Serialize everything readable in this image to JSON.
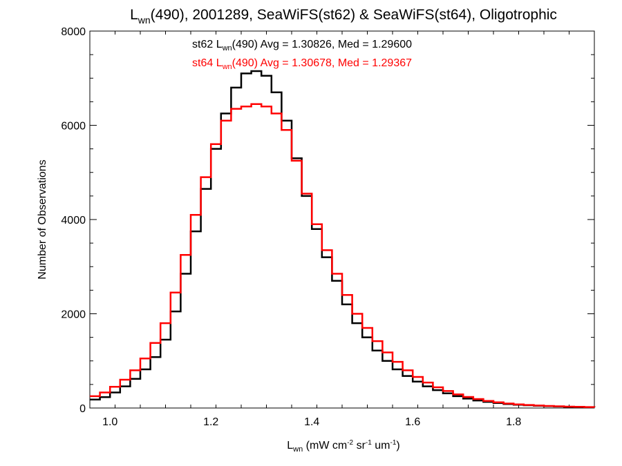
{
  "chart_data": {
    "type": "line",
    "title": {
      "prefix": "L",
      "sub": "wn",
      "rest": "(490), 2001289, SeaWiFS(st62) & SeaWiFS(st64), Oligotrophic"
    },
    "xlabel": {
      "prefix": "L",
      "sub": "wn",
      "a": " (mW cm",
      "s1": "-2",
      "b": " sr",
      "s2": "-1",
      "c": " um",
      "s3": "-1",
      "d": ")"
    },
    "ylabel": "Number of Observations",
    "xlim": [
      0.96,
      1.96
    ],
    "ylim": [
      0,
      8000
    ],
    "x_ticks": [
      1.0,
      1.2,
      1.4,
      1.6,
      1.8
    ],
    "x_tick_labels": [
      "1.0",
      "1.2",
      "1.4",
      "1.6",
      "1.8"
    ],
    "y_ticks": [
      0,
      2000,
      4000,
      6000,
      8000
    ],
    "y_tick_labels": [
      "0",
      "2000",
      "4000",
      "6000",
      "8000"
    ],
    "annotations": [
      {
        "pre": "st62 L",
        "sub": "wn",
        "post": "(490) Avg = 1.30826, Med = 1.29600",
        "color": "#000000"
      },
      {
        "pre": "st64 L",
        "sub": "wn",
        "post": "(490) Avg = 1.30678, Med = 1.29367",
        "color": "#ff0000"
      }
    ],
    "series": [
      {
        "color": "#000000",
        "x": [
          0.96,
          0.98,
          1.0,
          1.02,
          1.04,
          1.06,
          1.08,
          1.1,
          1.12,
          1.14,
          1.16,
          1.18,
          1.2,
          1.22,
          1.24,
          1.26,
          1.28,
          1.3,
          1.32,
          1.34,
          1.36,
          1.38,
          1.4,
          1.42,
          1.44,
          1.46,
          1.48,
          1.5,
          1.52,
          1.54,
          1.56,
          1.58,
          1.6,
          1.62,
          1.64,
          1.66,
          1.68,
          1.7,
          1.72,
          1.74,
          1.76,
          1.78,
          1.8,
          1.82,
          1.84,
          1.86,
          1.88,
          1.9,
          1.92,
          1.94,
          1.96
        ],
        "y": [
          180,
          230,
          330,
          460,
          620,
          820,
          1080,
          1450,
          2050,
          2850,
          3750,
          4650,
          5500,
          6250,
          6800,
          7100,
          7150,
          7050,
          6700,
          6100,
          5300,
          4500,
          3800,
          3200,
          2700,
          2200,
          1800,
          1500,
          1220,
          1000,
          820,
          680,
          560,
          460,
          380,
          310,
          250,
          200,
          160,
          130,
          105,
          85,
          70,
          58,
          48,
          40,
          33,
          27,
          22,
          18,
          14
        ]
      },
      {
        "color": "#ff0000",
        "x": [
          0.96,
          0.98,
          1.0,
          1.02,
          1.04,
          1.06,
          1.08,
          1.1,
          1.12,
          1.14,
          1.16,
          1.18,
          1.2,
          1.22,
          1.24,
          1.26,
          1.28,
          1.3,
          1.32,
          1.34,
          1.36,
          1.38,
          1.4,
          1.42,
          1.44,
          1.46,
          1.48,
          1.5,
          1.52,
          1.54,
          1.56,
          1.58,
          1.6,
          1.62,
          1.64,
          1.66,
          1.68,
          1.7,
          1.72,
          1.74,
          1.76,
          1.78,
          1.8,
          1.82,
          1.84,
          1.86,
          1.88,
          1.9,
          1.92,
          1.94,
          1.96
        ],
        "y": [
          250,
          330,
          450,
          600,
          800,
          1050,
          1380,
          1800,
          2450,
          3250,
          4100,
          4900,
          5600,
          6100,
          6350,
          6400,
          6450,
          6400,
          6250,
          5900,
          5250,
          4550,
          3900,
          3350,
          2850,
          2400,
          2000,
          1700,
          1420,
          1180,
          980,
          800,
          660,
          540,
          440,
          360,
          290,
          235,
          190,
          150,
          120,
          95,
          78,
          64,
          53,
          44,
          36,
          30,
          25,
          20,
          16
        ]
      }
    ],
    "grid": false,
    "legend": "none"
  }
}
